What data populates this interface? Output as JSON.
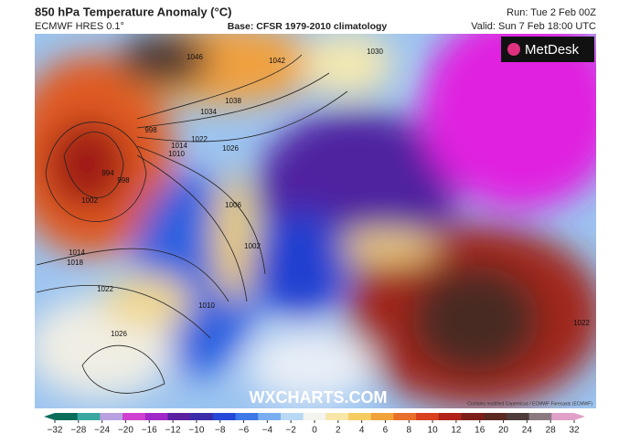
{
  "header": {
    "title": "850 hPa Temperature Anomaly (°C)",
    "model": "ECMWF HRES 0.1°",
    "base": "Base: CFSR 1979-2010 climatology",
    "run": "Run: Tue 2 Feb 00Z",
    "valid": "Valid: Sun 7 Feb 18:00 UTC"
  },
  "logo": "MetDesk",
  "watermark": "WXCHARTS.COM",
  "credit": "Contains modified Copernicus / ECMWF Forecasts (ECMWF)",
  "isobar_labels": [
    "1038",
    "1034",
    "1022",
    "1026",
    "1014",
    "1010",
    "1006",
    "1002",
    "998",
    "994",
    "998",
    "1002",
    "1014",
    "1018",
    "1022",
    "1026",
    "1010",
    "1030",
    "1042",
    "1046",
    "1022"
  ],
  "colorbar": {
    "ticks": [
      "−32",
      "−28",
      "−24",
      "−20",
      "−16",
      "−12",
      "−10",
      "−8",
      "−6",
      "−4",
      "−2",
      "0",
      "2",
      "4",
      "6",
      "8",
      "10",
      "12",
      "16",
      "20",
      "24",
      "28",
      "32"
    ],
    "colors": [
      "#0a6e5a",
      "#3aa8a0",
      "#b9a0e0",
      "#d040d0",
      "#a028c8",
      "#5a22a0",
      "#3b2ca8",
      "#2548d8",
      "#3c78e8",
      "#78aef0",
      "#b8d8f6",
      "#f4f4ee",
      "#f8e6a8",
      "#f6cc60",
      "#f2a23a",
      "#e8702a",
      "#d8401e",
      "#b0221a",
      "#7e1e18",
      "#5a2a22",
      "#4e3c3a",
      "#8a7a80",
      "#e0a0c8"
    ]
  }
}
